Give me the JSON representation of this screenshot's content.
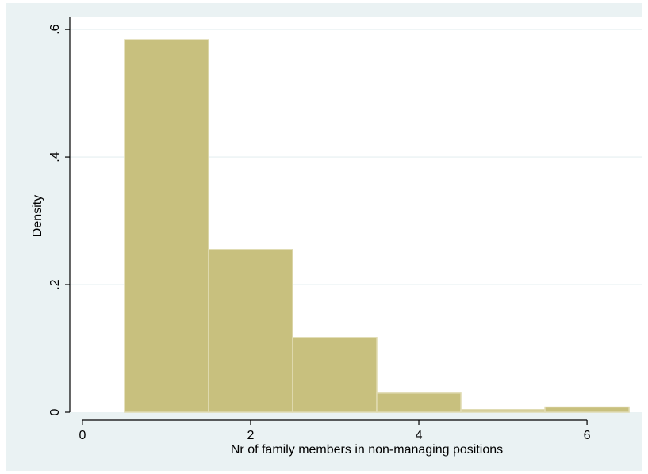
{
  "chart_data": {
    "type": "bar",
    "title": "",
    "xlabel": "Nr of family members in non-managing positions",
    "ylabel": "Density",
    "xlim": [
      -0.15,
      6.65
    ],
    "ylim": [
      0,
      0.62
    ],
    "x_ticks": [
      {
        "value": 0,
        "label": "0"
      },
      {
        "value": 2,
        "label": "2"
      },
      {
        "value": 4,
        "label": "4"
      },
      {
        "value": 6,
        "label": "6"
      }
    ],
    "y_ticks": [
      {
        "value": 0,
        "label": "0"
      },
      {
        "value": 0.2,
        "label": ".2"
      },
      {
        "value": 0.4,
        "label": ".4"
      },
      {
        "value": 0.6,
        "label": ".6"
      }
    ],
    "grid": true,
    "bins": [
      {
        "x0": 0.5,
        "x1": 1.5,
        "value": 0.584
      },
      {
        "x0": 1.5,
        "x1": 2.5,
        "value": 0.255
      },
      {
        "x0": 2.5,
        "x1": 3.5,
        "value": 0.117
      },
      {
        "x0": 3.5,
        "x1": 4.5,
        "value": 0.03
      },
      {
        "x0": 4.5,
        "x1": 5.5,
        "value": 0.004
      },
      {
        "x0": 5.5,
        "x1": 6.5,
        "value": 0.008
      }
    ],
    "colors": {
      "background": "#eaf2f3",
      "plot_area": "#ffffff",
      "bar_fill": "#c8c07e",
      "bar_stroke": "#e0dbb2",
      "grid": "#eaf2f3",
      "axis": "#000000"
    }
  }
}
